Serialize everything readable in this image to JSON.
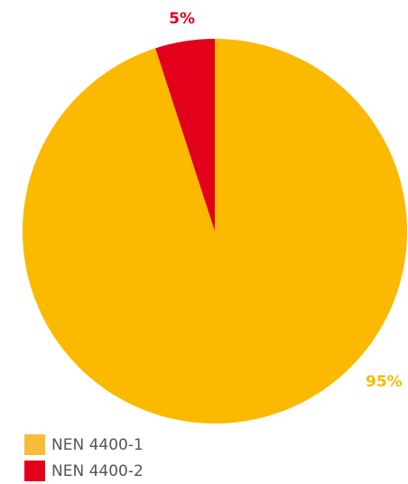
{
  "chart_data": {
    "type": "pie",
    "categories": [
      "NEN 4400-1",
      "NEN 4400-2"
    ],
    "values": [
      95,
      5
    ],
    "data_labels": [
      "95%",
      "5%"
    ],
    "colors": [
      "#FBB900",
      "#E2001A"
    ],
    "legend_swatch_colors": [
      "#F8BC3B",
      "#E2001A"
    ],
    "legend": {
      "placement": "bottom-left"
    },
    "start_angle_deg": 0,
    "direction": "counterclockwise-from-top-for-small-slice"
  }
}
